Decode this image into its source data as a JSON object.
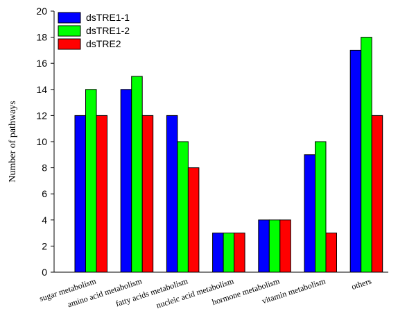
{
  "chart_data": {
    "type": "bar",
    "title": "",
    "xlabel": "",
    "ylabel": "Number of pathways",
    "ylim": [
      0,
      20
    ],
    "yticks": [
      0,
      2,
      4,
      6,
      8,
      10,
      12,
      14,
      16,
      18,
      20
    ],
    "grid": false,
    "legend_position": "top-left",
    "categories": [
      "sugar metabolism",
      "amino acid metabolism",
      "fatty acids metabolism",
      "nucleic acid metabolism",
      "hormone metabolism",
      "vitamin metabolism",
      "others"
    ],
    "series": [
      {
        "name": "dsTRE1-1",
        "color": "#0000ff",
        "values": [
          12,
          14,
          12,
          3,
          4,
          9,
          17
        ]
      },
      {
        "name": "dsTRE1-2",
        "color": "#00ff00",
        "values": [
          14,
          15,
          10,
          3,
          4,
          10,
          18
        ]
      },
      {
        "name": "dsTRE2",
        "color": "#ff0000",
        "values": [
          12,
          12,
          8,
          3,
          4,
          3,
          12
        ]
      }
    ]
  }
}
